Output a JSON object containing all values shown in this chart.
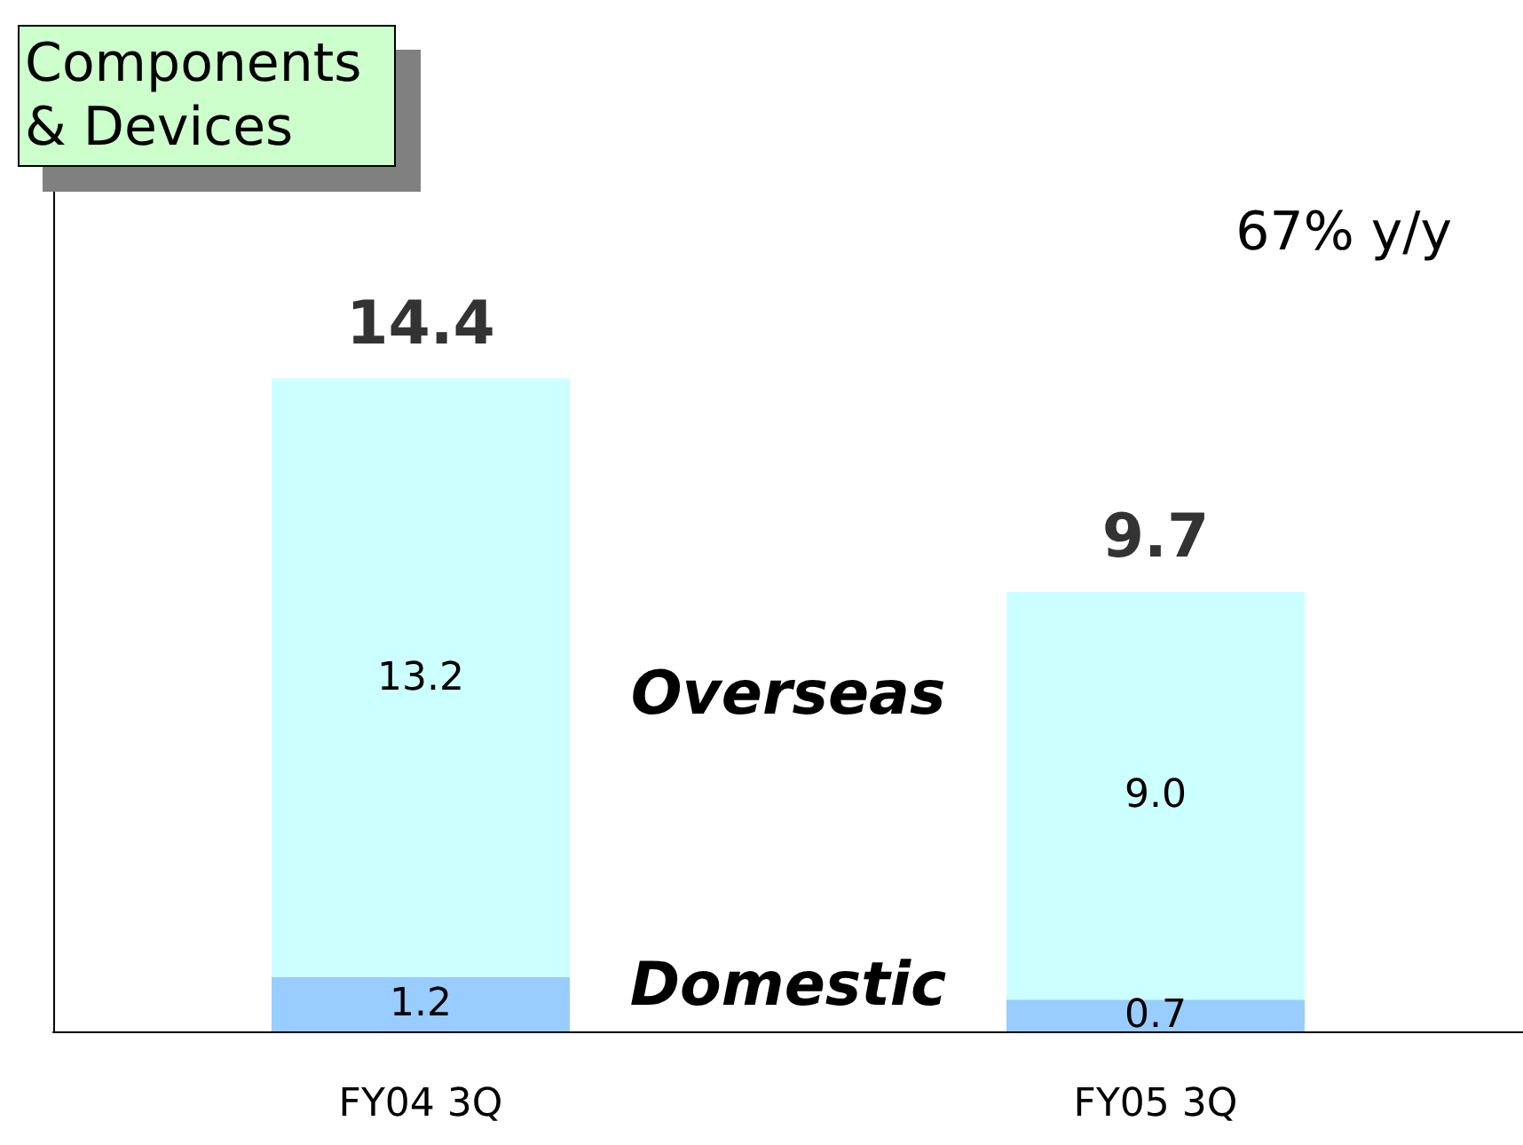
{
  "chart_data": {
    "type": "bar",
    "title": "Components & Devices",
    "annotations": [
      "67% y/y"
    ],
    "categories": [
      "FY04 3Q",
      "FY05 3Q"
    ],
    "series": [
      {
        "name": "Domestic",
        "color": "#99ccff",
        "values": [
          1.2,
          0.7
        ],
        "value_labels": [
          "1.2",
          "0.7"
        ]
      },
      {
        "name": "Overseas",
        "color": "#ccffff",
        "values": [
          13.2,
          9.0
        ],
        "value_labels": [
          "13.2",
          "9.0"
        ]
      }
    ],
    "stacked": true,
    "totals": [
      "14.4",
      "9.7"
    ],
    "tick_labels": "x",
    "grid": false,
    "legend": false
  }
}
